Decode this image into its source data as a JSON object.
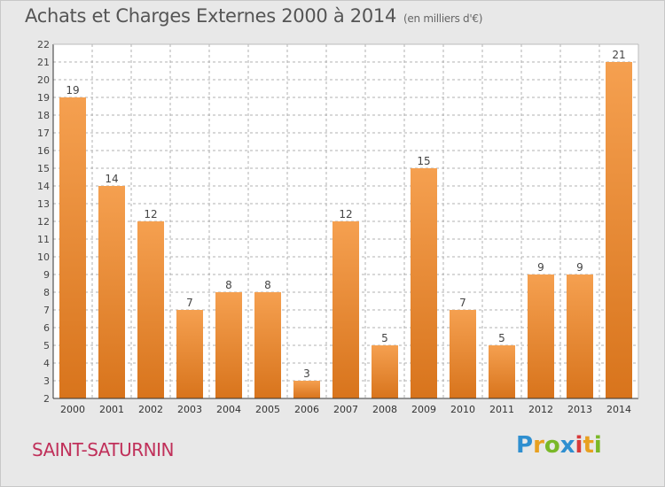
{
  "header": {
    "title": "Achats et Charges Externes 2000 à 2014",
    "unit": "(en milliers d'€)"
  },
  "footer": {
    "commune": "SAINT-SATURNIN",
    "logo_text": "Proxiti"
  },
  "colors": {
    "bar_top": "#f5a050",
    "bar_bottom": "#d8741c",
    "plot_bg": "#ffffff",
    "grid": "#b0b0b0",
    "commune": "#c0305a"
  },
  "chart_data": {
    "type": "bar",
    "categories": [
      "2000",
      "2001",
      "2002",
      "2003",
      "2004",
      "2005",
      "2006",
      "2007",
      "2008",
      "2009",
      "2010",
      "2011",
      "2012",
      "2013",
      "2014"
    ],
    "values": [
      19,
      14,
      12,
      7,
      8,
      8,
      3,
      12,
      5,
      15,
      7,
      5,
      9,
      9,
      21
    ],
    "title": "Achats et Charges Externes 2000 à 2014",
    "ylim": [
      2,
      22
    ],
    "yticks": [
      2,
      3,
      4,
      5,
      6,
      7,
      8,
      9,
      10,
      11,
      12,
      13,
      14,
      15,
      16,
      17,
      18,
      19,
      20,
      21,
      22
    ],
    "grid": true,
    "data_labels": true
  }
}
